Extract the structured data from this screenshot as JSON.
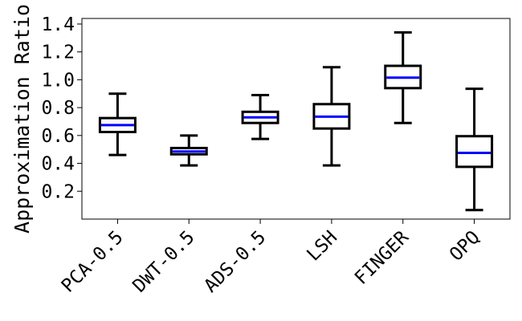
{
  "chart_data": {
    "type": "box",
    "title": "",
    "xlabel": "",
    "ylabel": "Approximation Ratio",
    "ylim": [
      0.0,
      1.44
    ],
    "yticks": [
      0.2,
      0.4,
      0.6,
      0.8,
      1.0,
      1.2,
      1.4
    ],
    "ytick_labels": [
      "0.2",
      "0.4",
      "0.6",
      "0.8",
      "1.0",
      "1.2",
      "1.4"
    ],
    "grid": false,
    "categories": [
      "PCA-0.5",
      "DWT-0.5",
      "ADS-0.5",
      "LSH",
      "FINGER",
      "OPQ"
    ],
    "boxes": [
      {
        "whislo": 0.46,
        "q1": 0.625,
        "med": 0.675,
        "q3": 0.725,
        "whishi": 0.9
      },
      {
        "whislo": 0.385,
        "q1": 0.465,
        "med": 0.485,
        "q3": 0.51,
        "whishi": 0.6
      },
      {
        "whislo": 0.575,
        "q1": 0.69,
        "med": 0.73,
        "q3": 0.77,
        "whishi": 0.89
      },
      {
        "whislo": 0.385,
        "q1": 0.65,
        "med": 0.735,
        "q3": 0.825,
        "whishi": 1.09
      },
      {
        "whislo": 0.69,
        "q1": 0.94,
        "med": 1.015,
        "q3": 1.1,
        "whishi": 1.34
      },
      {
        "whislo": 0.065,
        "q1": 0.375,
        "med": 0.475,
        "q3": 0.595,
        "whishi": 0.935
      }
    ],
    "box_color": "#000000",
    "median_color": "#0000ff"
  }
}
